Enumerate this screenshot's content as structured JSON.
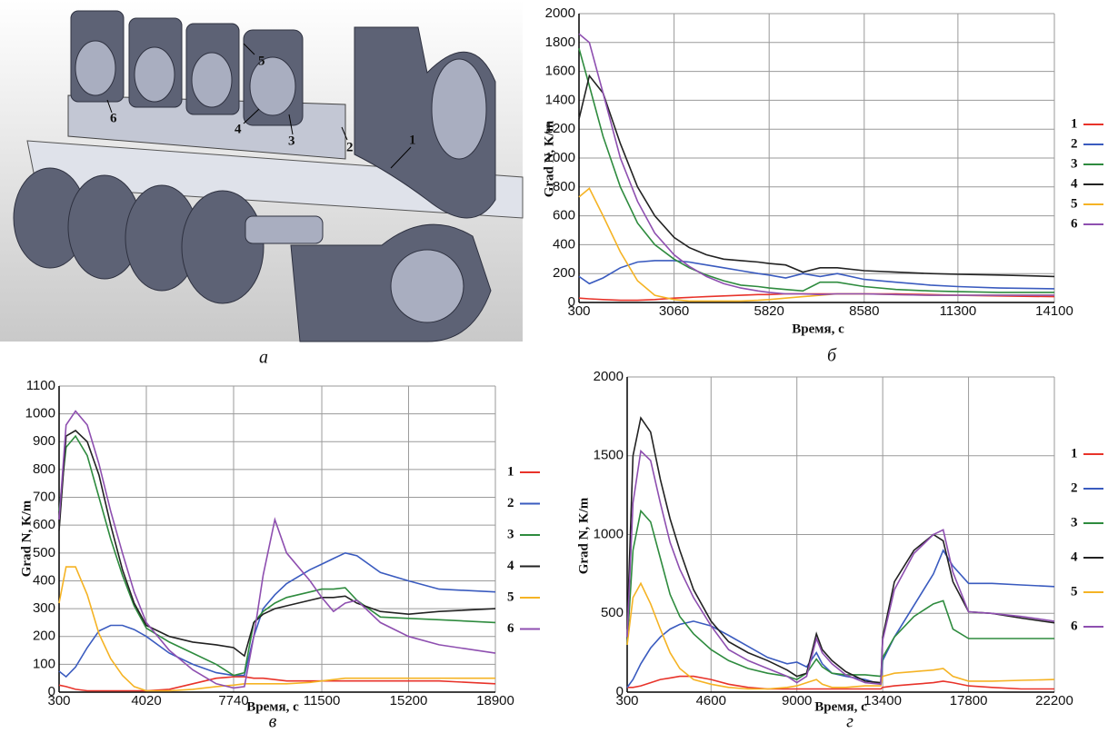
{
  "panel_a": {
    "labels": [
      "5",
      "6",
      "4",
      "3",
      "2",
      "1"
    ],
    "caption": "а"
  },
  "chart_data": [
    {
      "type": "line",
      "caption": "б",
      "xlabel": "Время, с",
      "ylabel": "Grad N, K/m",
      "grid": true,
      "xlim": [
        300,
        14100
      ],
      "xticks": [
        300,
        3060,
        5820,
        8580,
        11300,
        14100
      ],
      "ylim": [
        0,
        2000
      ],
      "yticks": [
        0,
        200,
        400,
        600,
        800,
        1000,
        1200,
        1400,
        1600,
        1800,
        2000
      ],
      "x": [
        300,
        600,
        1000,
        1500,
        2000,
        2500,
        3060,
        3500,
        4000,
        4500,
        5000,
        5500,
        5820,
        6300,
        6800,
        7300,
        7800,
        8580,
        9500,
        10500,
        11300,
        12500,
        14100
      ],
      "series": [
        {
          "name": "1",
          "color": "#e8332a",
          "values": [
            30,
            25,
            20,
            15,
            15,
            20,
            30,
            35,
            40,
            45,
            50,
            55,
            55,
            60,
            60,
            60,
            60,
            60,
            60,
            55,
            50,
            45,
            40
          ]
        },
        {
          "name": "2",
          "color": "#3a5bbf",
          "values": [
            180,
            130,
            170,
            240,
            280,
            290,
            290,
            280,
            260,
            240,
            220,
            200,
            190,
            170,
            200,
            180,
            200,
            160,
            140,
            120,
            110,
            100,
            95
          ]
        },
        {
          "name": "3",
          "color": "#2e8b3e",
          "values": [
            1760,
            1500,
            1150,
            800,
            550,
            400,
            300,
            240,
            190,
            150,
            120,
            110,
            100,
            90,
            80,
            140,
            140,
            110,
            90,
            80,
            75,
            70,
            70
          ]
        },
        {
          "name": "4",
          "color": "#222222",
          "values": [
            1270,
            1570,
            1450,
            1100,
            800,
            600,
            450,
            380,
            330,
            300,
            290,
            280,
            270,
            260,
            210,
            240,
            240,
            220,
            210,
            200,
            195,
            190,
            180
          ]
        },
        {
          "name": "5",
          "color": "#f5b324",
          "values": [
            730,
            790,
            600,
            350,
            150,
            50,
            20,
            10,
            10,
            10,
            10,
            15,
            20,
            30,
            40,
            50,
            60,
            60,
            55,
            50,
            50,
            50,
            50
          ]
        },
        {
          "name": "6",
          "color": "#8e4fb0",
          "values": [
            1860,
            1800,
            1450,
            1000,
            700,
            480,
            330,
            250,
            180,
            130,
            100,
            80,
            70,
            60,
            60,
            55,
            60,
            60,
            55,
            50,
            50,
            50,
            50
          ]
        }
      ]
    },
    {
      "type": "line",
      "caption": "в",
      "xlabel": "Время, с",
      "ylabel": "Grad N, K/m",
      "grid": true,
      "xlim": [
        300,
        18900
      ],
      "xticks": [
        300,
        4020,
        7740,
        11500,
        15200,
        18900
      ],
      "ylim": [
        0,
        1100
      ],
      "yticks": [
        0,
        100,
        200,
        300,
        400,
        500,
        600,
        700,
        800,
        900,
        1000,
        1100
      ],
      "x": [
        300,
        600,
        1000,
        1500,
        2000,
        2500,
        3000,
        3500,
        4020,
        5000,
        6000,
        7000,
        7740,
        8200,
        8600,
        9000,
        9500,
        10000,
        11000,
        11500,
        12000,
        12500,
        13000,
        14000,
        15200,
        16500,
        18900
      ],
      "series": [
        {
          "name": "1",
          "color": "#e8332a",
          "values": [
            25,
            20,
            10,
            5,
            5,
            5,
            5,
            5,
            5,
            10,
            30,
            50,
            55,
            55,
            50,
            50,
            45,
            40,
            40,
            40,
            40,
            40,
            40,
            40,
            40,
            40,
            30
          ]
        },
        {
          "name": "2",
          "color": "#3a5bbf",
          "values": [
            75,
            55,
            90,
            160,
            220,
            240,
            240,
            225,
            200,
            140,
            100,
            70,
            60,
            60,
            200,
            300,
            350,
            390,
            440,
            460,
            480,
            500,
            490,
            430,
            400,
            370,
            360
          ]
        },
        {
          "name": "3",
          "color": "#2e8b3e",
          "values": [
            650,
            880,
            920,
            850,
            700,
            550,
            420,
            310,
            230,
            180,
            140,
            100,
            60,
            70,
            250,
            290,
            320,
            340,
            360,
            370,
            370,
            375,
            330,
            270,
            265,
            260,
            250
          ]
        },
        {
          "name": "4",
          "color": "#222222",
          "values": [
            580,
            920,
            940,
            900,
            780,
            600,
            440,
            320,
            240,
            200,
            180,
            170,
            160,
            130,
            250,
            280,
            300,
            310,
            330,
            340,
            340,
            345,
            320,
            290,
            280,
            290,
            300
          ]
        },
        {
          "name": "5",
          "color": "#f5b324",
          "values": [
            320,
            450,
            450,
            350,
            210,
            120,
            60,
            20,
            5,
            5,
            10,
            20,
            25,
            30,
            30,
            30,
            30,
            30,
            35,
            40,
            45,
            50,
            50,
            50,
            50,
            50,
            50
          ]
        },
        {
          "name": "6",
          "color": "#8e4fb0",
          "values": [
            620,
            960,
            1010,
            960,
            820,
            650,
            500,
            360,
            250,
            150,
            80,
            30,
            15,
            20,
            200,
            420,
            620,
            500,
            400,
            340,
            290,
            320,
            330,
            250,
            200,
            170,
            140
          ]
        }
      ]
    },
    {
      "type": "line",
      "caption": "г",
      "xlabel": "Время, с",
      "ylabel": "Grad N, K/m",
      "grid": true,
      "xlim": [
        300,
        22200
      ],
      "xticks": [
        300,
        4600,
        9000,
        13400,
        17800,
        22200
      ],
      "ylim": [
        0,
        2000
      ],
      "yticks": [
        0,
        500,
        1000,
        1500,
        2000
      ],
      "x": [
        300,
        600,
        1000,
        1500,
        2000,
        2500,
        3000,
        3700,
        4600,
        5500,
        6500,
        7500,
        8500,
        9000,
        9500,
        10000,
        10300,
        10800,
        11500,
        12500,
        13300,
        13400,
        14000,
        15000,
        16000,
        16500,
        17000,
        17800,
        19000,
        20500,
        22200
      ],
      "series": [
        {
          "name": "1",
          "color": "#e8332a",
          "values": [
            30,
            30,
            40,
            60,
            80,
            90,
            100,
            100,
            80,
            50,
            30,
            20,
            20,
            20,
            20,
            20,
            20,
            20,
            20,
            20,
            20,
            30,
            40,
            50,
            60,
            70,
            60,
            40,
            30,
            20,
            20
          ]
        },
        {
          "name": "2",
          "color": "#3a5bbf",
          "values": [
            30,
            80,
            180,
            280,
            350,
            400,
            430,
            450,
            420,
            360,
            290,
            220,
            180,
            190,
            160,
            250,
            180,
            120,
            100,
            80,
            50,
            200,
            350,
            550,
            750,
            900,
            800,
            690,
            690,
            680,
            670
          ]
        },
        {
          "name": "3",
          "color": "#2e8b3e",
          "values": [
            300,
            900,
            1150,
            1080,
            850,
            620,
            480,
            370,
            270,
            200,
            150,
            120,
            100,
            80,
            120,
            210,
            160,
            120,
            110,
            110,
            100,
            220,
            350,
            480,
            560,
            580,
            400,
            340,
            340,
            340,
            340
          ]
        },
        {
          "name": "4",
          "color": "#222222",
          "values": [
            400,
            1500,
            1740,
            1650,
            1350,
            1100,
            900,
            650,
            450,
            320,
            250,
            200,
            140,
            100,
            120,
            370,
            270,
            200,
            130,
            70,
            60,
            350,
            700,
            900,
            1000,
            960,
            700,
            510,
            500,
            470,
            440
          ]
        },
        {
          "name": "5",
          "color": "#f5b324",
          "values": [
            300,
            600,
            690,
            560,
            400,
            250,
            150,
            80,
            50,
            30,
            20,
            20,
            30,
            40,
            60,
            80,
            50,
            30,
            30,
            40,
            40,
            100,
            120,
            130,
            140,
            150,
            100,
            70,
            70,
            75,
            80
          ]
        },
        {
          "name": "6",
          "color": "#8e4fb0",
          "values": [
            350,
            1200,
            1530,
            1470,
            1200,
            950,
            780,
            600,
            420,
            270,
            200,
            150,
            100,
            60,
            100,
            340,
            250,
            180,
            110,
            60,
            50,
            330,
            650,
            880,
            1000,
            1030,
            760,
            510,
            500,
            480,
            450
          ]
        }
      ]
    }
  ]
}
